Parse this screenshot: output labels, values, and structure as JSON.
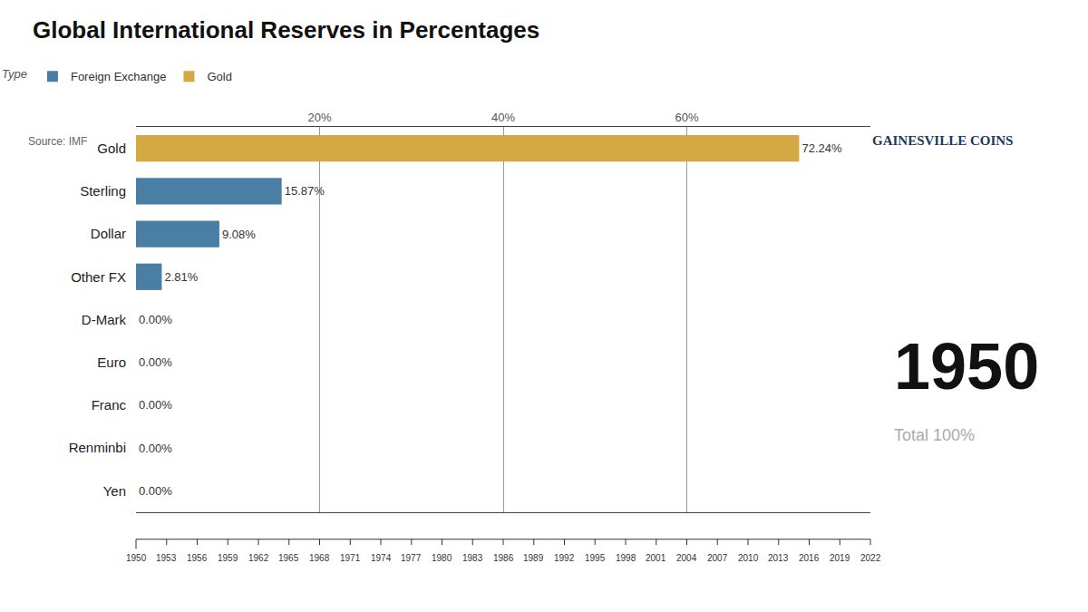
{
  "chart_data": {
    "type": "bar",
    "orientation": "horizontal",
    "title": "Global International Reserves in Percentages",
    "subtitle": "Type",
    "categories": [
      "Gold",
      "Sterling",
      "Dollar",
      "Other FX",
      "D-Mark",
      "Euro",
      "Franc",
      "Renminbi",
      "Yen"
    ],
    "series": [
      {
        "name": "Foreign Exchange",
        "color": "#4a7fa5",
        "values": [
          null,
          15.87,
          9.08,
          2.81,
          0.0,
          0.0,
          0.0,
          0.0,
          0.0
        ],
        "value_labels": [
          null,
          "15.87%",
          "9.08%",
          "2.81%",
          "0.00%",
          "0.00%",
          "0.00%",
          "0.00%",
          "0.00%"
        ]
      },
      {
        "name": "Gold",
        "color": "#d4a843",
        "values": [
          72.24,
          null,
          null,
          null,
          null,
          null,
          null,
          null,
          null
        ],
        "value_labels": [
          "72.24%",
          null,
          null,
          null,
          null,
          null,
          null,
          null,
          null
        ]
      }
    ],
    "xlim": [
      0,
      80
    ],
    "xticks": [
      {
        "value": 20,
        "label": "20%"
      },
      {
        "value": 40,
        "label": "40%"
      },
      {
        "value": 60,
        "label": "60%"
      }
    ],
    "grid": true,
    "data_labels": true,
    "legend": "top left",
    "annotations": [
      "1950",
      "Total 100%",
      "Source: IMF",
      "GAINESVILLE COINS"
    ],
    "timeline": [
      "1950",
      "1953",
      "1956",
      "1959",
      "1962",
      "1965",
      "1968",
      "1971",
      "1974",
      "1977",
      "1980",
      "1983",
      "1986",
      "1989",
      "1992",
      "1995",
      "1998",
      "2001",
      "2004",
      "2007",
      "2010",
      "2013",
      "2016",
      "2019",
      "2022"
    ]
  }
}
